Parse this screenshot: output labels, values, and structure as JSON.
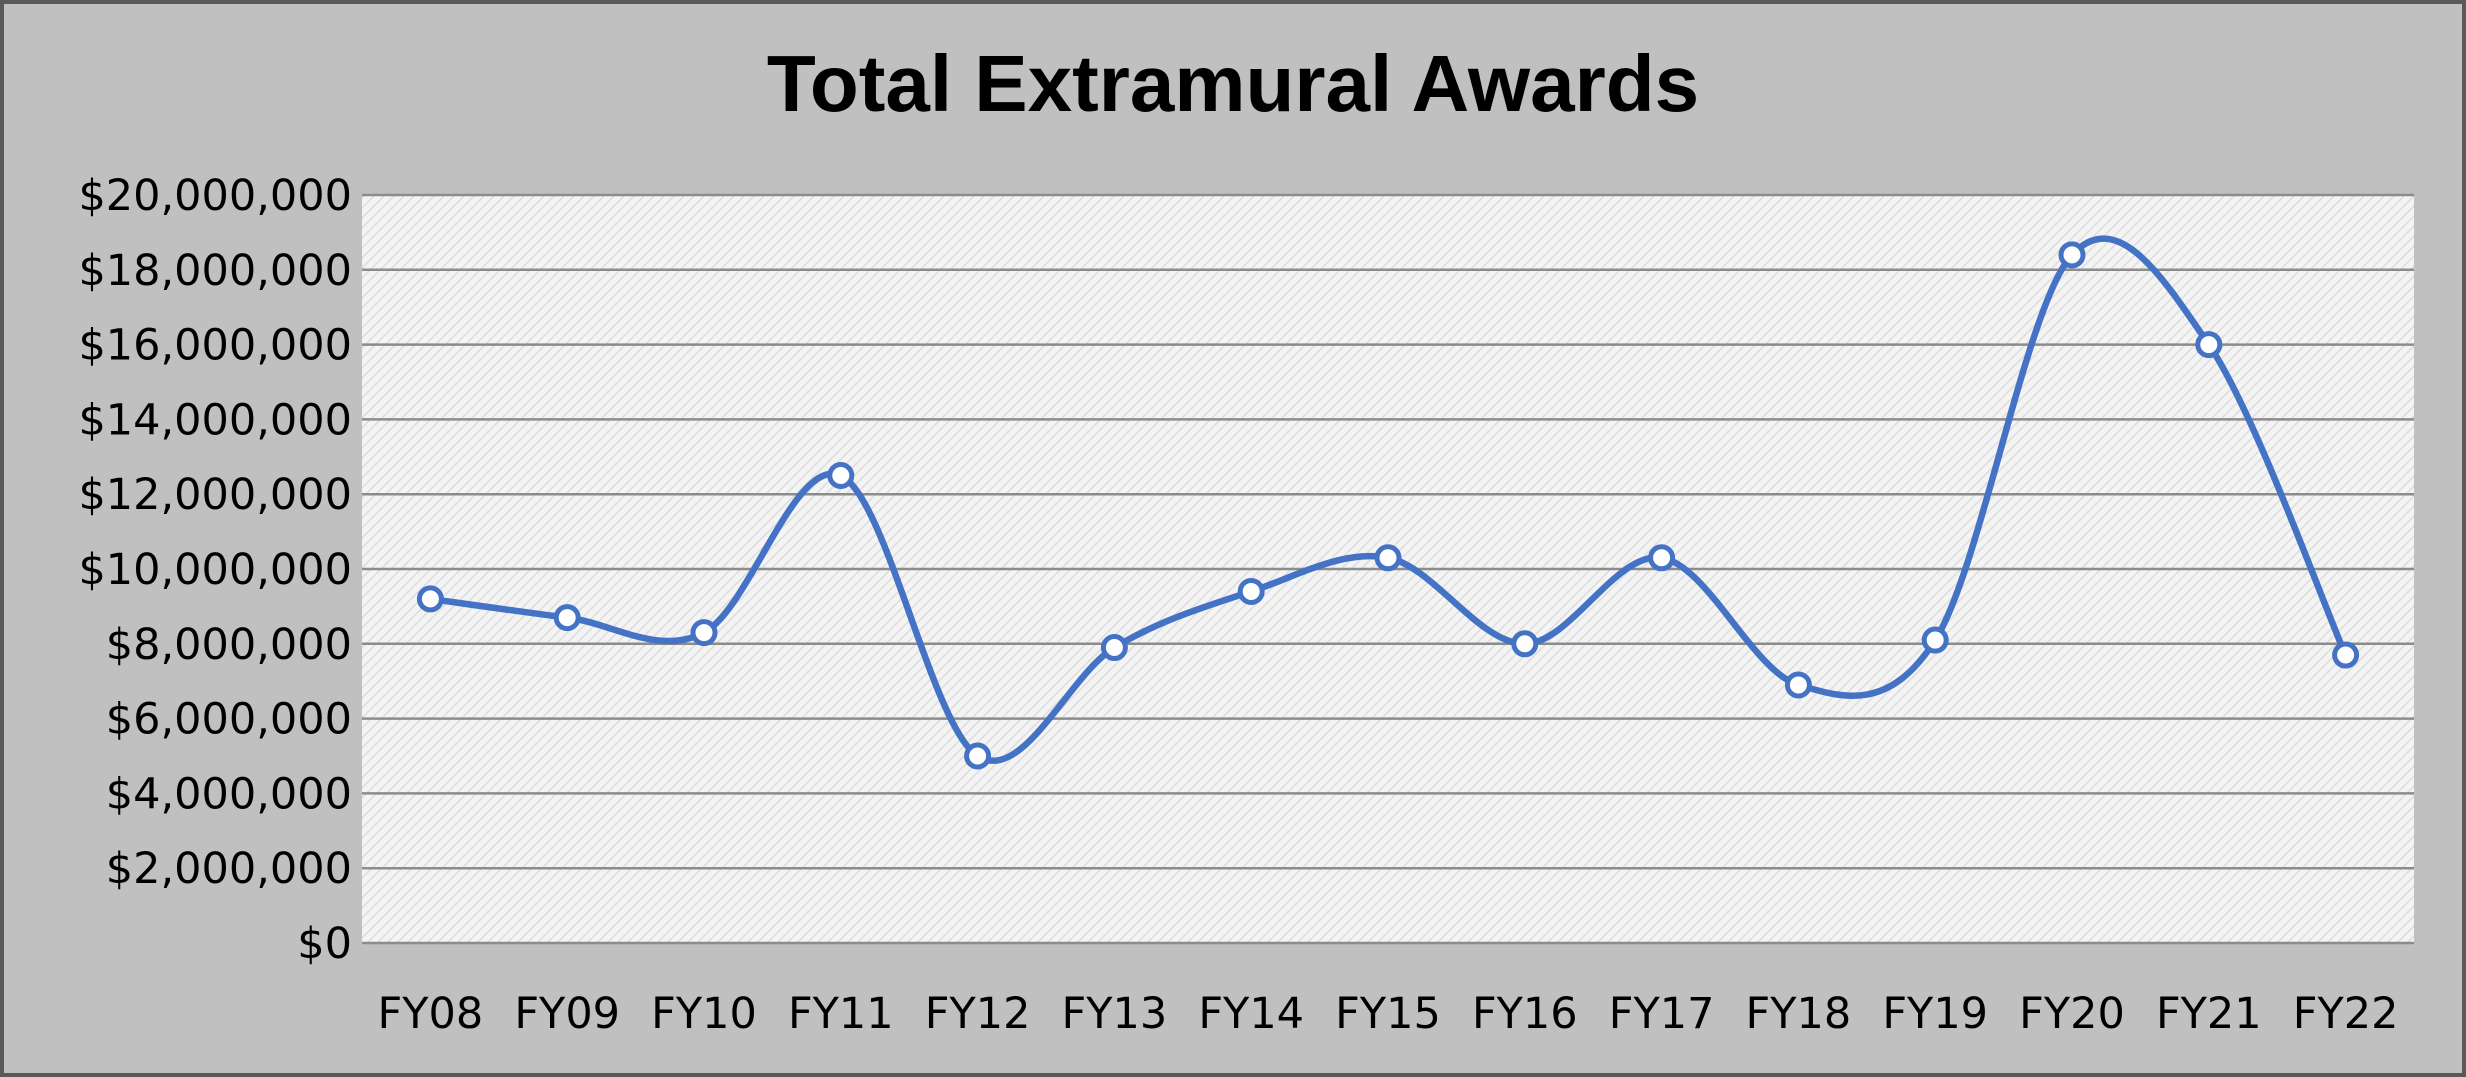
{
  "chart_data": {
    "type": "line",
    "title": "Total Extramural Awards",
    "xlabel": "",
    "ylabel": "",
    "categories": [
      "FY08",
      "FY09",
      "FY10",
      "FY11",
      "FY12",
      "FY13",
      "FY14",
      "FY15",
      "FY16",
      "FY17",
      "FY18",
      "FY19",
      "FY20",
      "FY21",
      "FY22"
    ],
    "series": [
      {
        "values": [
          9200000,
          8700000,
          8300000,
          12500000,
          5000000,
          7900000,
          9400000,
          10300000,
          8000000,
          10300000,
          6900000,
          8100000,
          18400000,
          16000000,
          7700000
        ]
      }
    ],
    "ylim": [
      0,
      20000000
    ],
    "y_ticks": [
      "$0",
      "$2,000,000",
      "$4,000,000",
      "$6,000,000",
      "$8,000,000",
      "$10,000,000",
      "$12,000,000",
      "$14,000,000",
      "$16,000,000",
      "$18,000,000",
      "$20,000,000"
    ],
    "grid": "horizontal",
    "smooth": true,
    "legend": "none",
    "colors": {
      "line": "#4472c4",
      "marker_fill": "#ffffff",
      "background": "#c0c0c0",
      "plot_area": "#f2f2f2",
      "gridline": "#8c8c8c",
      "border": "#595959"
    }
  }
}
